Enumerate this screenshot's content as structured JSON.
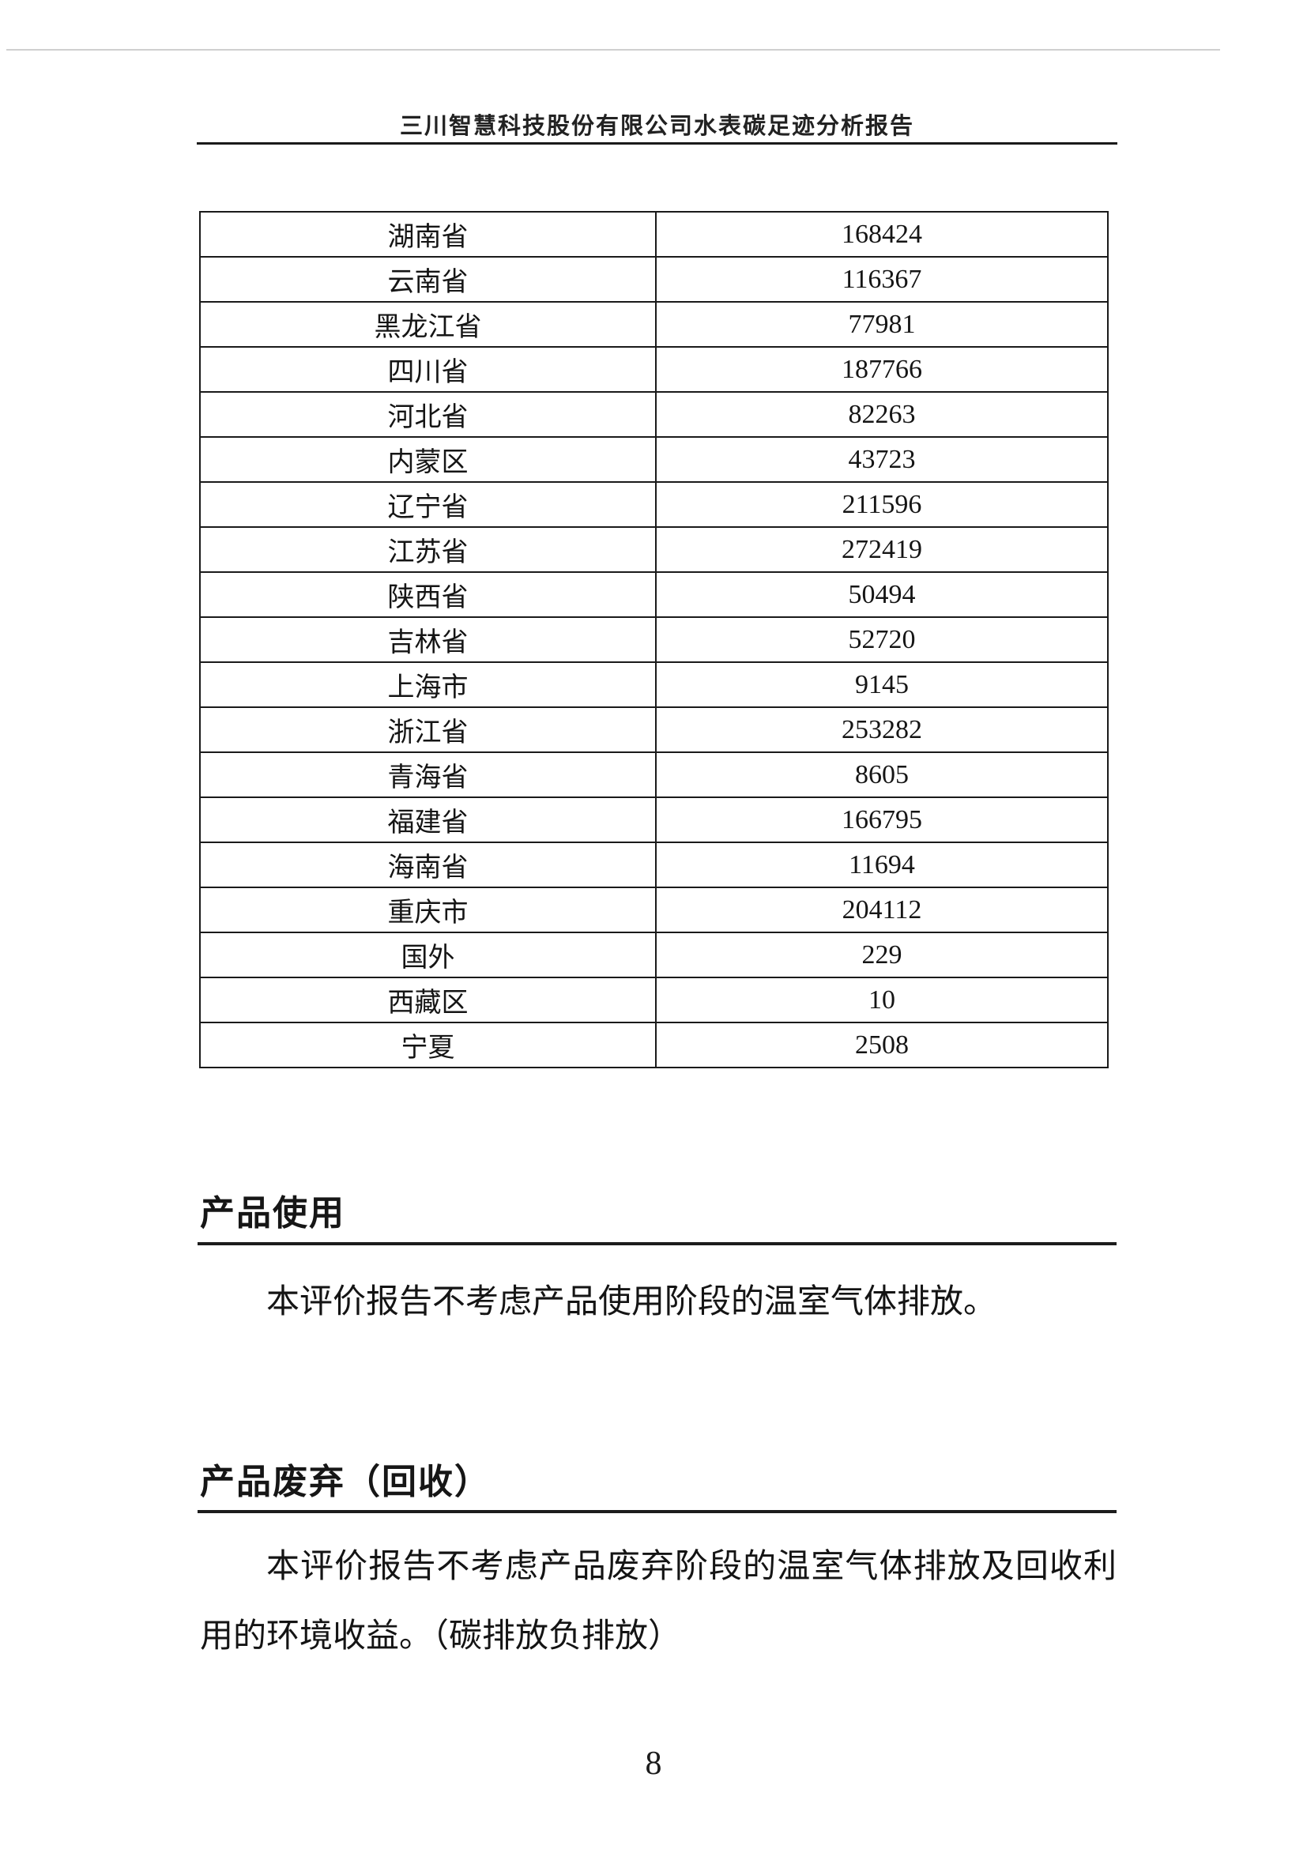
{
  "header": {
    "title": "三川智慧科技股份有限公司水表碳足迹分析报告"
  },
  "table": {
    "rows": [
      {
        "region": "湖南省",
        "value": "168424"
      },
      {
        "region": "云南省",
        "value": "116367"
      },
      {
        "region": "黑龙江省",
        "value": "77981"
      },
      {
        "region": "四川省",
        "value": "187766"
      },
      {
        "region": "河北省",
        "value": "82263"
      },
      {
        "region": "内蒙区",
        "value": "43723"
      },
      {
        "region": "辽宁省",
        "value": "211596"
      },
      {
        "region": "江苏省",
        "value": "272419"
      },
      {
        "region": "陕西省",
        "value": "50494"
      },
      {
        "region": "吉林省",
        "value": "52720"
      },
      {
        "region": "上海市",
        "value": "9145"
      },
      {
        "region": "浙江省",
        "value": "253282"
      },
      {
        "region": "青海省",
        "value": "8605"
      },
      {
        "region": "福建省",
        "value": "166795"
      },
      {
        "region": "海南省",
        "value": "11694"
      },
      {
        "region": "重庆市",
        "value": "204112"
      },
      {
        "region": "国外",
        "value": "229"
      },
      {
        "region": "西藏区",
        "value": "10"
      },
      {
        "region": "宁夏",
        "value": "2508"
      }
    ]
  },
  "sections": [
    {
      "heading": "产品使用",
      "paragraph": "本评价报告不考虑产品使用阶段的温室气体排放。"
    },
    {
      "heading": "产品废弃（回收）",
      "paragraph": "本评价报告不考虑产品废弃阶段的温室气体排放及回收利用的环境收益。（碳排放负排放）"
    }
  ],
  "footer": {
    "page_number": "8"
  }
}
